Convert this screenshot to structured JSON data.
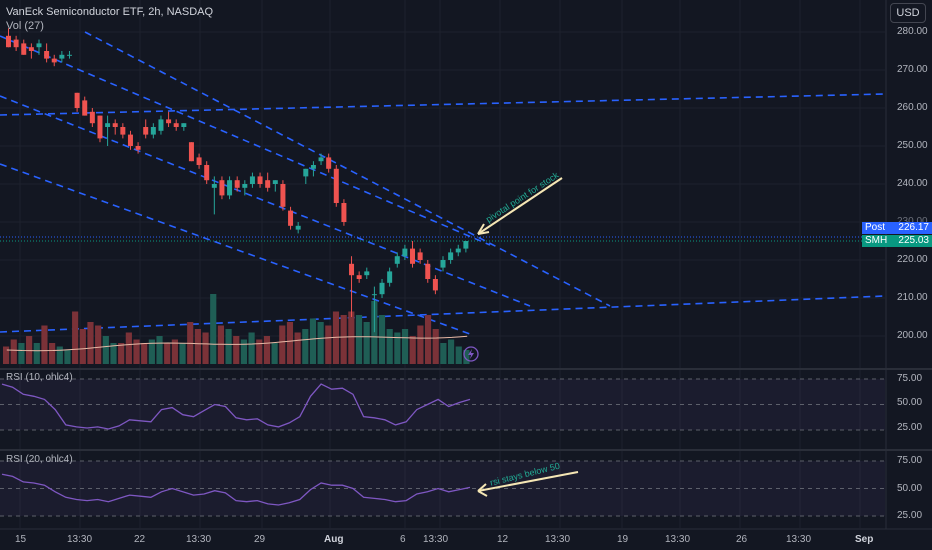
{
  "header": {
    "title": "VanEck Semiconductor ETF, 2h, NASDAQ",
    "volume_label": "Vol (27)",
    "currency_button": "USD"
  },
  "price_axis": {
    "labels": [
      "280.00",
      "270.00",
      "260.00",
      "250.00",
      "240.00",
      "230.00",
      "220.00",
      "210.00",
      "200.00"
    ]
  },
  "price_tags": {
    "post": {
      "label": "Post",
      "value": "226.17",
      "color": "#2962ff"
    },
    "smh": {
      "label": "SMH",
      "value": "225.03",
      "color": "#089981"
    }
  },
  "rsi1": {
    "label": "RSI (10, ohlc4)",
    "axis": [
      "75.00",
      "50.00",
      "25.00"
    ]
  },
  "rsi2": {
    "label": "RSI (20, ohlc4)",
    "axis": [
      "75.00",
      "50.00",
      "25.00"
    ]
  },
  "time_axis": {
    "labels": [
      "15",
      "13:30",
      "22",
      "13:30",
      "29",
      "Aug",
      "6",
      "13:30",
      "12",
      "13:30",
      "19",
      "13:30",
      "26",
      "13:30",
      "Sep"
    ],
    "bold": [
      "Aug",
      "Sep"
    ]
  },
  "annotations": {
    "pivot": "pivotal point for stock",
    "rsi": "rsi stays below 50"
  },
  "colors": {
    "up": "#26a69a",
    "down": "#ef5350",
    "trendline": "#2962ff",
    "rsi_line": "#7e57c2",
    "arrow": "#f5e6b4",
    "background": "#131722"
  },
  "chart_data": {
    "type": "candlestick",
    "price_range": [
      196,
      283
    ],
    "candles": [
      {
        "o": 279,
        "h": 281,
        "l": 276,
        "c": 276
      },
      {
        "o": 278,
        "h": 279,
        "l": 275,
        "c": 276
      },
      {
        "o": 277,
        "h": 278,
        "l": 274,
        "c": 274
      },
      {
        "o": 276,
        "h": 277,
        "l": 273,
        "c": 275
      },
      {
        "o": 276,
        "h": 278,
        "l": 274,
        "c": 277
      },
      {
        "o": 275,
        "h": 277,
        "l": 272,
        "c": 273
      },
      {
        "o": 273,
        "h": 274,
        "l": 271,
        "c": 272
      },
      {
        "o": 273,
        "h": 275,
        "l": 272,
        "c": 274
      },
      {
        "o": 274,
        "h": 275,
        "l": 273,
        "c": 274
      },
      {
        "o": 264,
        "h": 264,
        "l": 259,
        "c": 260
      },
      {
        "o": 262,
        "h": 263,
        "l": 258,
        "c": 258
      },
      {
        "o": 259,
        "h": 260,
        "l": 255,
        "c": 256
      },
      {
        "o": 258,
        "h": 258,
        "l": 251,
        "c": 252
      },
      {
        "o": 255,
        "h": 258,
        "l": 250,
        "c": 256
      },
      {
        "o": 256,
        "h": 257,
        "l": 253,
        "c": 255
      },
      {
        "o": 255,
        "h": 256,
        "l": 252,
        "c": 253
      },
      {
        "o": 253,
        "h": 254,
        "l": 249,
        "c": 250
      },
      {
        "o": 250,
        "h": 251,
        "l": 248,
        "c": 249
      },
      {
        "o": 255,
        "h": 257,
        "l": 252,
        "c": 253
      },
      {
        "o": 253,
        "h": 256,
        "l": 252,
        "c": 255
      },
      {
        "o": 254,
        "h": 258,
        "l": 253,
        "c": 257
      },
      {
        "o": 257,
        "h": 259,
        "l": 255,
        "c": 256
      },
      {
        "o": 256,
        "h": 257,
        "l": 254,
        "c": 255
      },
      {
        "o": 255,
        "h": 256,
        "l": 254,
        "c": 256
      },
      {
        "o": 251,
        "h": 251,
        "l": 246,
        "c": 246
      },
      {
        "o": 247,
        "h": 248,
        "l": 244,
        "c": 245
      },
      {
        "o": 245,
        "h": 246,
        "l": 240,
        "c": 241
      },
      {
        "o": 239,
        "h": 242,
        "l": 232,
        "c": 240
      },
      {
        "o": 241,
        "h": 242,
        "l": 236,
        "c": 237
      },
      {
        "o": 237,
        "h": 242,
        "l": 236,
        "c": 241
      },
      {
        "o": 241,
        "h": 242,
        "l": 238,
        "c": 239
      },
      {
        "o": 239,
        "h": 241,
        "l": 237,
        "c": 240
      },
      {
        "o": 240,
        "h": 243,
        "l": 239,
        "c": 242
      },
      {
        "o": 242,
        "h": 243,
        "l": 239,
        "c": 240
      },
      {
        "o": 241,
        "h": 243,
        "l": 238,
        "c": 239
      },
      {
        "o": 240,
        "h": 241,
        "l": 238,
        "c": 241
      },
      {
        "o": 240,
        "h": 241,
        "l": 233,
        "c": 234
      },
      {
        "o": 233,
        "h": 234,
        "l": 228,
        "c": 229
      },
      {
        "o": 228,
        "h": 230,
        "l": 227,
        "c": 229
      },
      {
        "o": 242,
        "h": 244,
        "l": 240,
        "c": 244
      },
      {
        "o": 244,
        "h": 246,
        "l": 242,
        "c": 245
      },
      {
        "o": 246,
        "h": 248,
        "l": 245,
        "c": 247
      },
      {
        "o": 247,
        "h": 248,
        "l": 243,
        "c": 244
      },
      {
        "o": 244,
        "h": 245,
        "l": 234,
        "c": 235
      },
      {
        "o": 235,
        "h": 236,
        "l": 229,
        "c": 230
      },
      {
        "o": 219,
        "h": 221,
        "l": 205,
        "c": 216
      },
      {
        "o": 216,
        "h": 217,
        "l": 214,
        "c": 215
      },
      {
        "o": 216,
        "h": 218,
        "l": 215,
        "c": 217
      },
      {
        "o": 211,
        "h": 213,
        "l": 201,
        "c": 211
      },
      {
        "o": 211,
        "h": 215,
        "l": 210,
        "c": 214
      },
      {
        "o": 214,
        "h": 218,
        "l": 213,
        "c": 217
      },
      {
        "o": 219,
        "h": 222,
        "l": 218,
        "c": 221
      },
      {
        "o": 221,
        "h": 224,
        "l": 220,
        "c": 223
      },
      {
        "o": 223,
        "h": 225,
        "l": 218,
        "c": 219
      },
      {
        "o": 222,
        "h": 223,
        "l": 219,
        "c": 220
      },
      {
        "o": 219,
        "h": 220,
        "l": 214,
        "c": 215
      },
      {
        "o": 215,
        "h": 216,
        "l": 211,
        "c": 212
      },
      {
        "o": 218,
        "h": 221,
        "l": 217,
        "c": 220
      },
      {
        "o": 220,
        "h": 223,
        "l": 219,
        "c": 222
      },
      {
        "o": 222,
        "h": 224,
        "l": 221,
        "c": 223
      },
      {
        "o": 223,
        "h": 225,
        "l": 222,
        "c": 225
      }
    ],
    "volume": [
      {
        "v": 0.25,
        "up": false
      },
      {
        "v": 0.35,
        "up": false
      },
      {
        "v": 0.3,
        "up": true
      },
      {
        "v": 0.4,
        "up": false
      },
      {
        "v": 0.3,
        "up": true
      },
      {
        "v": 0.55,
        "up": false
      },
      {
        "v": 0.3,
        "up": false
      },
      {
        "v": 0.25,
        "up": true
      },
      {
        "v": 0.2,
        "up": true
      },
      {
        "v": 0.75,
        "up": false
      },
      {
        "v": 0.5,
        "up": false
      },
      {
        "v": 0.6,
        "up": false
      },
      {
        "v": 0.55,
        "up": false
      },
      {
        "v": 0.4,
        "up": true
      },
      {
        "v": 0.3,
        "up": true
      },
      {
        "v": 0.3,
        "up": false
      },
      {
        "v": 0.45,
        "up": false
      },
      {
        "v": 0.35,
        "up": false
      },
      {
        "v": 0.3,
        "up": false
      },
      {
        "v": 0.35,
        "up": true
      },
      {
        "v": 0.4,
        "up": true
      },
      {
        "v": 0.3,
        "up": false
      },
      {
        "v": 0.35,
        "up": false
      },
      {
        "v": 0.3,
        "up": true
      },
      {
        "v": 0.6,
        "up": false
      },
      {
        "v": 0.5,
        "up": false
      },
      {
        "v": 0.45,
        "up": false
      },
      {
        "v": 1.0,
        "up": true
      },
      {
        "v": 0.55,
        "up": false
      },
      {
        "v": 0.5,
        "up": true
      },
      {
        "v": 0.4,
        "up": false
      },
      {
        "v": 0.35,
        "up": true
      },
      {
        "v": 0.45,
        "up": true
      },
      {
        "v": 0.35,
        "up": false
      },
      {
        "v": 0.4,
        "up": false
      },
      {
        "v": 0.3,
        "up": true
      },
      {
        "v": 0.55,
        "up": false
      },
      {
        "v": 0.6,
        "up": false
      },
      {
        "v": 0.45,
        "up": false
      },
      {
        "v": 0.5,
        "up": true
      },
      {
        "v": 0.65,
        "up": true
      },
      {
        "v": 0.6,
        "up": true
      },
      {
        "v": 0.55,
        "up": false
      },
      {
        "v": 0.75,
        "up": false
      },
      {
        "v": 0.7,
        "up": false
      },
      {
        "v": 0.75,
        "up": false
      },
      {
        "v": 0.7,
        "up": true
      },
      {
        "v": 0.6,
        "up": true
      },
      {
        "v": 0.9,
        "up": true
      },
      {
        "v": 0.7,
        "up": true
      },
      {
        "v": 0.5,
        "up": true
      },
      {
        "v": 0.45,
        "up": true
      },
      {
        "v": 0.5,
        "up": true
      },
      {
        "v": 0.4,
        "up": false
      },
      {
        "v": 0.55,
        "up": false
      },
      {
        "v": 0.7,
        "up": false
      },
      {
        "v": 0.5,
        "up": false
      },
      {
        "v": 0.3,
        "up": true
      },
      {
        "v": 0.35,
        "up": true
      },
      {
        "v": 0.25,
        "up": true
      },
      {
        "v": 0.2,
        "up": true
      }
    ],
    "rsi10": [
      70,
      67,
      60,
      58,
      55,
      45,
      30,
      28,
      27,
      28,
      26,
      29,
      35,
      34,
      33,
      45,
      47,
      40,
      38,
      44,
      50,
      48,
      37,
      35,
      36,
      30,
      28,
      32,
      38,
      58,
      70,
      65,
      66,
      60,
      38,
      37,
      35,
      30,
      33,
      45,
      50,
      55,
      48,
      52,
      55
    ],
    "rsi20": [
      63,
      61,
      56,
      55,
      53,
      47,
      42,
      40,
      39,
      40,
      38,
      41,
      44,
      43,
      42,
      47,
      50,
      47,
      44,
      45,
      48,
      46,
      39,
      38,
      39,
      36,
      35,
      37,
      40,
      49,
      55,
      53,
      53,
      50,
      42,
      41,
      40,
      38,
      39,
      45,
      47,
      50,
      47,
      49,
      51
    ],
    "trendlines": "descending channel and ascending support lines (dashed blue)"
  }
}
